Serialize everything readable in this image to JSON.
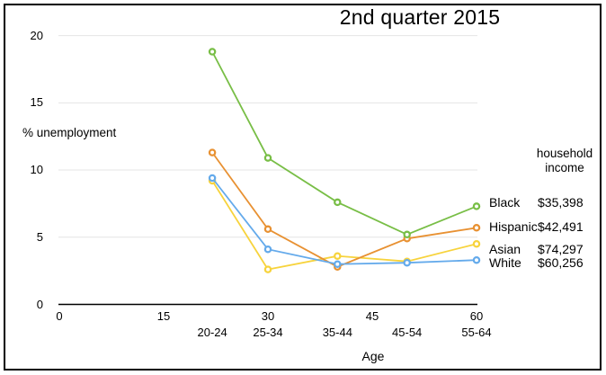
{
  "chart_data": {
    "type": "line",
    "title": "2nd quarter 2015",
    "xlabel": "Age",
    "ylabel": "% unemployment",
    "ylim": [
      0,
      20
    ],
    "y_ticks": [
      0,
      5,
      10,
      15,
      20
    ],
    "x_numeric_ticks": [
      0,
      15,
      30,
      45,
      60
    ],
    "x_axis_range": [
      0,
      60
    ],
    "grid": true,
    "legend_position": "right",
    "legend_heading_line1": "household",
    "legend_heading_line2": "income",
    "categories": [
      "20-24",
      "25-34",
      "35-44",
      "45-54",
      "55-64"
    ],
    "category_x": [
      22,
      30,
      40,
      50,
      60
    ],
    "series": [
      {
        "name": "Black",
        "color": "#78BE46",
        "household_income": "$35,398",
        "values": [
          18.8,
          10.9,
          7.6,
          5.2,
          7.3
        ]
      },
      {
        "name": "Hispanic",
        "color": "#E89132",
        "household_income": "$42,491",
        "values": [
          11.3,
          5.6,
          2.8,
          4.9,
          5.7
        ]
      },
      {
        "name": "Asian",
        "color": "#F7D33C",
        "household_income": "$74,297",
        "values": [
          9.2,
          2.6,
          3.6,
          3.2,
          4.5
        ]
      },
      {
        "name": "White",
        "color": "#64AAEB",
        "household_income": "$60,256",
        "values": [
          9.4,
          4.1,
          3.0,
          3.1,
          3.3
        ]
      }
    ],
    "colors": {
      "gridline": "#E4E4E4",
      "axis": "#000000",
      "text": "#000000",
      "background": "#FFFFFF"
    }
  }
}
